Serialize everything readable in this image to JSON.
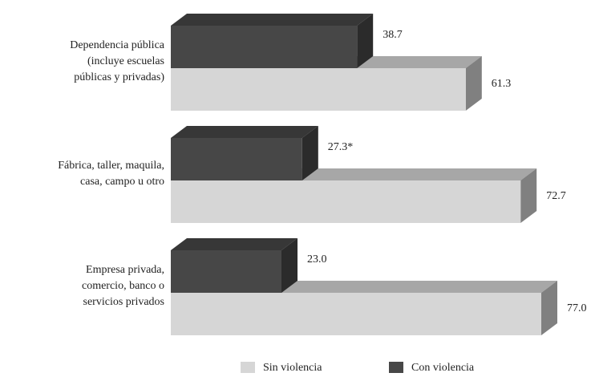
{
  "chart_data": {
    "type": "bar3d",
    "categories": [
      [
        "Dependencia pública",
        "(incluye escuelas",
        "públicas y privadas)"
      ],
      [
        "Fábrica, taller, maquila,",
        "casa, campo u otro"
      ],
      [
        "Empresa privada,",
        "comercio, banco o",
        "servicios privados"
      ]
    ],
    "series": [
      {
        "name": "Con violencia",
        "color": "#474747",
        "values": [
          38.7,
          27.3,
          23.0
        ],
        "value_labels": [
          "38.7",
          "27.3*",
          "23.0"
        ]
      },
      {
        "name": "Sin violencia",
        "color": "#d6d6d6",
        "values": [
          61.3,
          72.7,
          77.0
        ],
        "value_labels": [
          "61.3",
          "72.7",
          "77.0"
        ]
      }
    ]
  }
}
